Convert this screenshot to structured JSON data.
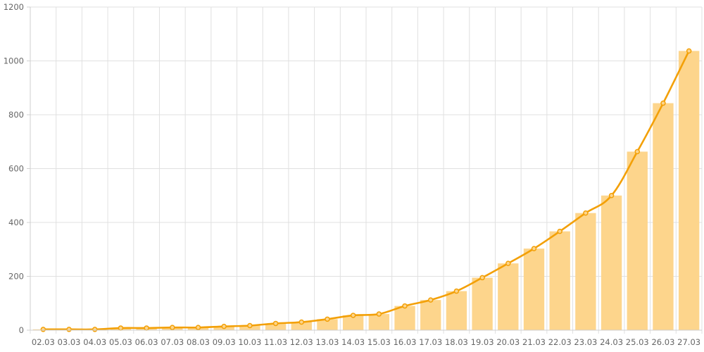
{
  "chart_data": {
    "type": "bar",
    "categories": [
      "02.03",
      "03.03",
      "04.03",
      "05.03",
      "06.03",
      "07.03",
      "08.03",
      "09.03",
      "10.03",
      "11.03",
      "12.03",
      "13.03",
      "14.03",
      "15.03",
      "16.03",
      "17.03",
      "18.03",
      "19.03",
      "20.03",
      "21.03",
      "22.03",
      "23.03",
      "24.03",
      "25.03",
      "26.03",
      "27.03"
    ],
    "series": [
      {
        "type": "bar",
        "values": [
          3,
          3,
          3,
          8,
          8,
          10,
          10,
          14,
          17,
          25,
          30,
          41,
          55,
          60,
          90,
          112,
          145,
          195,
          248,
          303,
          367,
          435,
          500,
          663,
          843,
          1037
        ],
        "color": "#fdd58c"
      },
      {
        "type": "line",
        "values": [
          3,
          3,
          3,
          8,
          8,
          10,
          10,
          14,
          17,
          25,
          30,
          41,
          55,
          60,
          90,
          112,
          145,
          195,
          248,
          303,
          367,
          435,
          500,
          663,
          843,
          1037
        ],
        "color": "#f3a007"
      }
    ],
    "ylim": [
      0,
      1200
    ],
    "yticks": [
      0,
      200,
      400,
      600,
      800,
      1000,
      1200
    ],
    "grid": true,
    "legend": "none",
    "title": "",
    "xlabel": "",
    "ylabel": ""
  }
}
